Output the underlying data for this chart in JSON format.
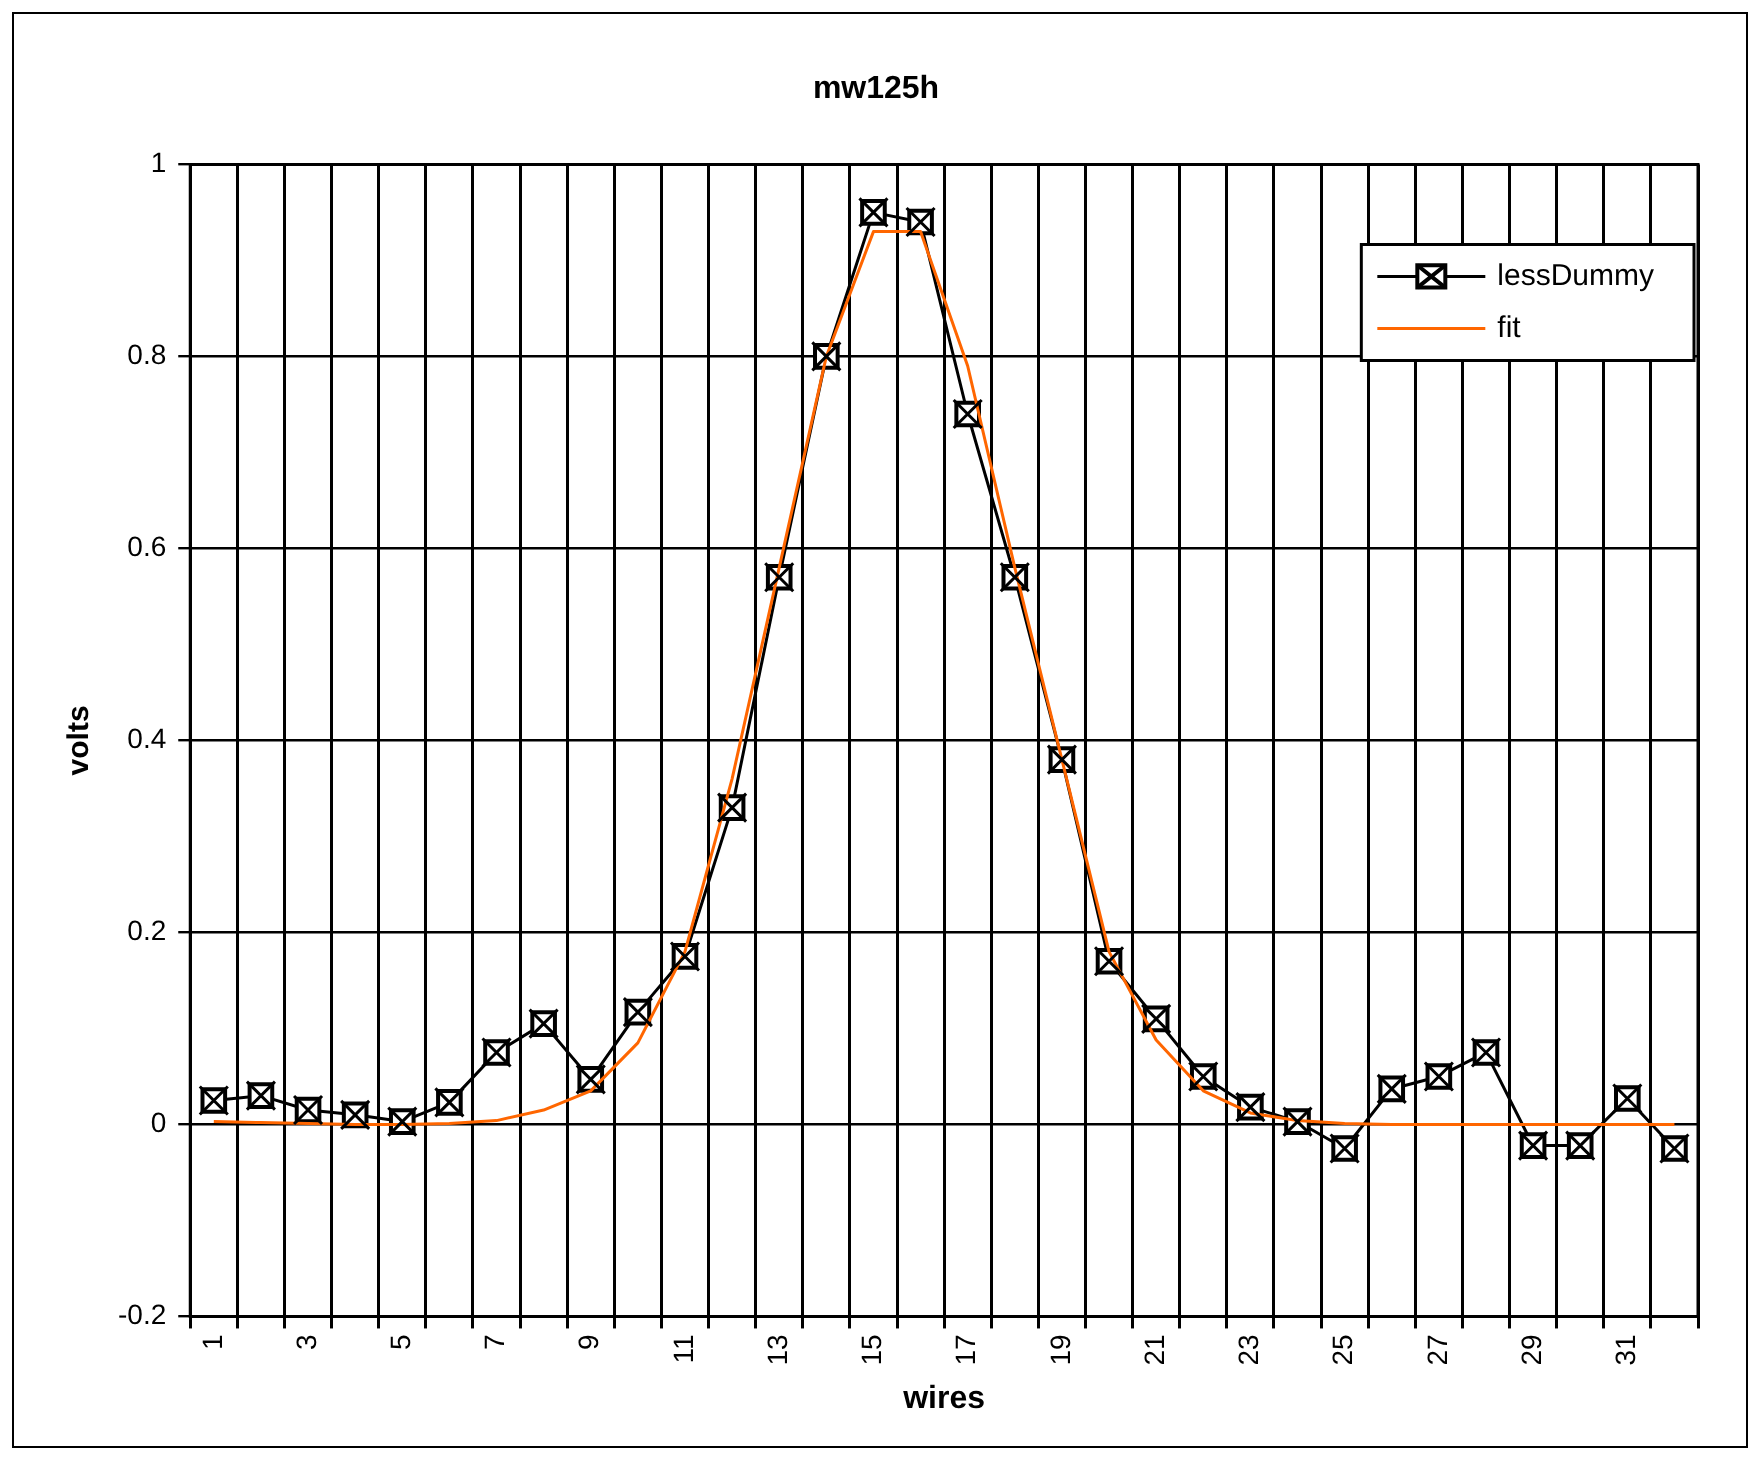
{
  "chart_data": {
    "type": "line",
    "title": "mw125h",
    "xlabel": "wires",
    "ylabel": "volts",
    "categories": [
      "1",
      null,
      "3",
      null,
      "5",
      null,
      "7",
      null,
      "9",
      null,
      "11",
      null,
      "13",
      null,
      "15",
      null,
      "17",
      null,
      "19",
      null,
      "21",
      null,
      "23",
      null,
      "25",
      null,
      "27",
      null,
      "29",
      null,
      "31",
      null
    ],
    "series": [
      {
        "name": "lessDummy",
        "color": "#000000",
        "marker": "square",
        "values": [
          0.025,
          0.03,
          0.015,
          0.01,
          0.003,
          0.023,
          0.075,
          0.105,
          0.047,
          0.117,
          0.175,
          0.33,
          0.57,
          0.8,
          0.95,
          0.94,
          0.74,
          0.57,
          0.38,
          0.17,
          0.11,
          0.05,
          0.018,
          0.003,
          -0.025,
          0.037,
          0.05,
          0.075,
          -0.022,
          -0.022,
          0.027,
          -0.025
        ]
      },
      {
        "name": "fit",
        "color": "#ff6600",
        "marker": "none",
        "values": [
          0.003,
          0.002,
          0.001,
          0,
          0,
          0.001,
          0.004,
          0.015,
          0.035,
          0.085,
          0.18,
          0.36,
          0.58,
          0.8,
          0.93,
          0.93,
          0.79,
          0.58,
          0.38,
          0.18,
          0.088,
          0.035,
          0.012,
          0.004,
          0.001,
          0,
          0,
          0,
          0,
          0,
          0,
          0
        ]
      }
    ],
    "ylim": [
      -0.2,
      1
    ],
    "yticks": [
      -0.2,
      0,
      0.2,
      0.4,
      0.6,
      0.8,
      1
    ],
    "grid": true,
    "legend": "top right"
  }
}
